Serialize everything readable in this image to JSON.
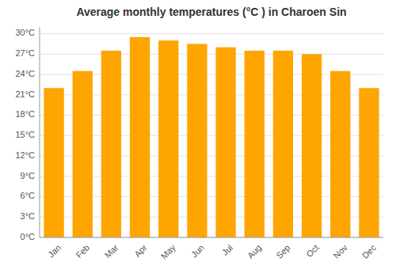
{
  "chart_data": {
    "type": "bar",
    "title": "Average monthly temperatures (°C ) in Charoen Sin",
    "categories": [
      "Jan",
      "Feb",
      "Mar",
      "Apr",
      "May",
      "Jun",
      "Jul",
      "Aug",
      "Sep",
      "Oct",
      "Nov",
      "Dec"
    ],
    "values": [
      22.0,
      24.5,
      27.5,
      29.5,
      29.0,
      28.5,
      28.0,
      27.5,
      27.5,
      27.0,
      24.5,
      22.0
    ],
    "color": "#FFA500",
    "ylim": [
      0,
      31
    ],
    "yticks": [
      {
        "value": 0,
        "label": "0°C"
      },
      {
        "value": 3,
        "label": "3°C"
      },
      {
        "value": 6,
        "label": "6°C"
      },
      {
        "value": 9,
        "label": "9°C"
      },
      {
        "value": 12,
        "label": "12°C"
      },
      {
        "value": 15,
        "label": "15°C"
      },
      {
        "value": 18,
        "label": "18°C"
      },
      {
        "value": 21,
        "label": "21°C"
      },
      {
        "value": 24,
        "label": "24°C"
      },
      {
        "value": 27,
        "label": "27°C"
      },
      {
        "value": 30,
        "label": "30°C"
      }
    ],
    "grid": true
  }
}
